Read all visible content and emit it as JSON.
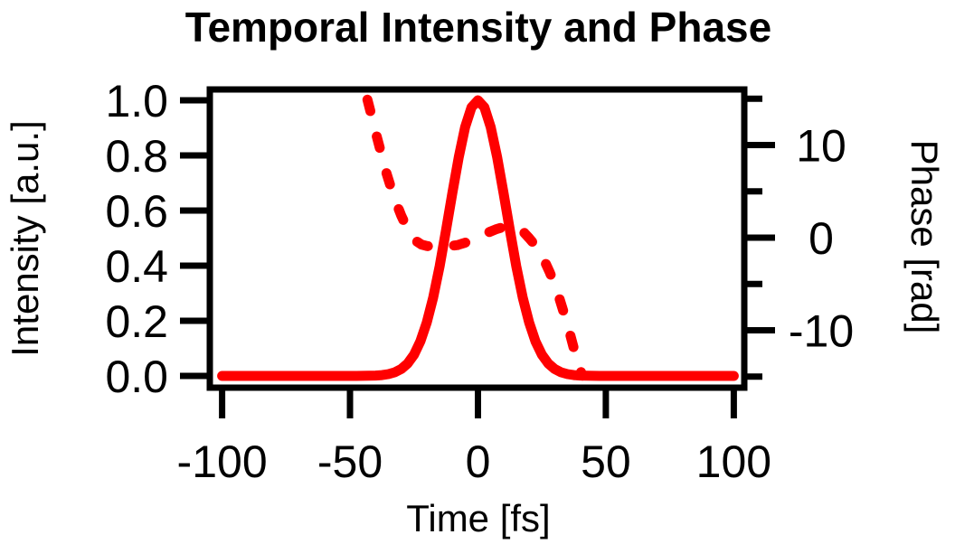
{
  "title": "Temporal Intensity and Phase",
  "colors": {
    "trace": "#ff0000",
    "axis": "#000000",
    "text": "#000000",
    "background": "#ffffff"
  },
  "chart_data": {
    "type": "line",
    "title": "Temporal Intensity and Phase",
    "xlabel": "Time [fs]",
    "grid": false,
    "legend": "none",
    "x_range": [
      -104.8,
      104.1
    ],
    "x_ticks": [
      {
        "v": -100,
        "label": "-100"
      },
      {
        "v": -50,
        "label": "-50"
      },
      {
        "v": 0,
        "label": "0"
      },
      {
        "v": 50,
        "label": "50"
      },
      {
        "v": 100,
        "label": "100"
      }
    ],
    "axes": {
      "left": {
        "label": "Intensity [a.u.]",
        "range": [
          -0.0426,
          1.0393
        ],
        "ticks": [
          {
            "v": 1.0,
            "label": "1.0"
          },
          {
            "v": 0.8,
            "label": "0.8"
          },
          {
            "v": 0.6,
            "label": "0.6"
          },
          {
            "v": 0.4,
            "label": "0.4"
          },
          {
            "v": 0.2,
            "label": "0.2"
          },
          {
            "v": 0.0,
            "label": "0.0"
          }
        ]
      },
      "right": {
        "label": "Phase [rad]",
        "range": [
          -16.2,
          16.0
        ],
        "major_ticks": [
          {
            "v": 10,
            "label": "10"
          },
          {
            "v": 0,
            "label": "0"
          },
          {
            "v": -10,
            "label": "-10"
          }
        ],
        "minor_ticks": [
          15,
          5,
          -5,
          -15
        ]
      }
    },
    "series": [
      {
        "name": "intensity",
        "axis": "left",
        "line_style": "solid",
        "color": "#ff0000",
        "points": [
          [
            -100,
            0
          ],
          [
            -90,
            0
          ],
          [
            -80,
            0
          ],
          [
            -70,
            0
          ],
          [
            -60,
            0
          ],
          [
            -55,
            0
          ],
          [
            -50,
            0
          ],
          [
            -47.5,
            0.0001
          ],
          [
            -45,
            0.0002
          ],
          [
            -42.5,
            0.0006
          ],
          [
            -40,
            0.0014
          ],
          [
            -37.5,
            0.0031
          ],
          [
            -35,
            0.0066
          ],
          [
            -32.5,
            0.0131
          ],
          [
            -30,
            0.0249
          ],
          [
            -27.5,
            0.0449
          ],
          [
            -25,
            0.077
          ],
          [
            -22.5,
            0.1254
          ],
          [
            -20,
            0.1939
          ],
          [
            -17.5,
            0.2847
          ],
          [
            -15,
            0.3974
          ],
          [
            -12.5,
            0.5268
          ],
          [
            -10,
            0.6636
          ],
          [
            -7.5,
            0.794
          ],
          [
            -5,
            0.9025
          ],
          [
            -2.5,
            0.9747
          ],
          [
            0,
            1
          ],
          [
            2.5,
            0.9747
          ],
          [
            5,
            0.9025
          ],
          [
            7.5,
            0.794
          ],
          [
            10,
            0.6636
          ],
          [
            12.5,
            0.5268
          ],
          [
            15,
            0.3974
          ],
          [
            17.5,
            0.2847
          ],
          [
            20,
            0.1939
          ],
          [
            22.5,
            0.1254
          ],
          [
            25,
            0.077
          ],
          [
            27.5,
            0.0449
          ],
          [
            30,
            0.0249
          ],
          [
            32.5,
            0.0131
          ],
          [
            35,
            0.0066
          ],
          [
            37.5,
            0.0031
          ],
          [
            40,
            0.0014
          ],
          [
            42.5,
            0.0006
          ],
          [
            45,
            0.0002
          ],
          [
            47.5,
            0.0001
          ],
          [
            50,
            0
          ],
          [
            55,
            0
          ],
          [
            60,
            0
          ],
          [
            70,
            0
          ],
          [
            80,
            0
          ],
          [
            90,
            0
          ],
          [
            100,
            0
          ]
        ]
      },
      {
        "name": "phase",
        "axis": "right",
        "line_style": "dashed",
        "color": "#ff0000",
        "points": [
          [
            -43.2,
            14.9
          ],
          [
            -42,
            13.6
          ],
          [
            -40,
            11.4
          ],
          [
            -38,
            9.3
          ],
          [
            -36,
            7.2
          ],
          [
            -34,
            5.4
          ],
          [
            -32,
            3.8
          ],
          [
            -30,
            2.4
          ],
          [
            -28,
            1.2
          ],
          [
            -26,
            0.2
          ],
          [
            -24,
            -0.4
          ],
          [
            -22,
            -0.75
          ],
          [
            -20,
            -0.9
          ],
          [
            -17,
            -1.0
          ],
          [
            -14,
            -1.0
          ],
          [
            -11,
            -0.9
          ],
          [
            -8,
            -0.8
          ],
          [
            -5,
            -0.55
          ],
          [
            -2,
            -0.2
          ],
          [
            1,
            0.2
          ],
          [
            4,
            0.55
          ],
          [
            7,
            0.9
          ],
          [
            10,
            1.15
          ],
          [
            12,
            1.28
          ],
          [
            14,
            1.2
          ],
          [
            16,
            0.95
          ],
          [
            18,
            0.55
          ],
          [
            20,
            -0.05
          ],
          [
            22,
            -0.7
          ],
          [
            24,
            -1.5
          ],
          [
            26,
            -2.5
          ],
          [
            28,
            -3.7
          ],
          [
            30,
            -5.1
          ],
          [
            32,
            -6.7
          ],
          [
            34,
            -8.5
          ],
          [
            36,
            -10.4
          ],
          [
            38,
            -12.5
          ],
          [
            40,
            -14.3
          ],
          [
            40.8,
            -14.9
          ]
        ]
      }
    ]
  }
}
